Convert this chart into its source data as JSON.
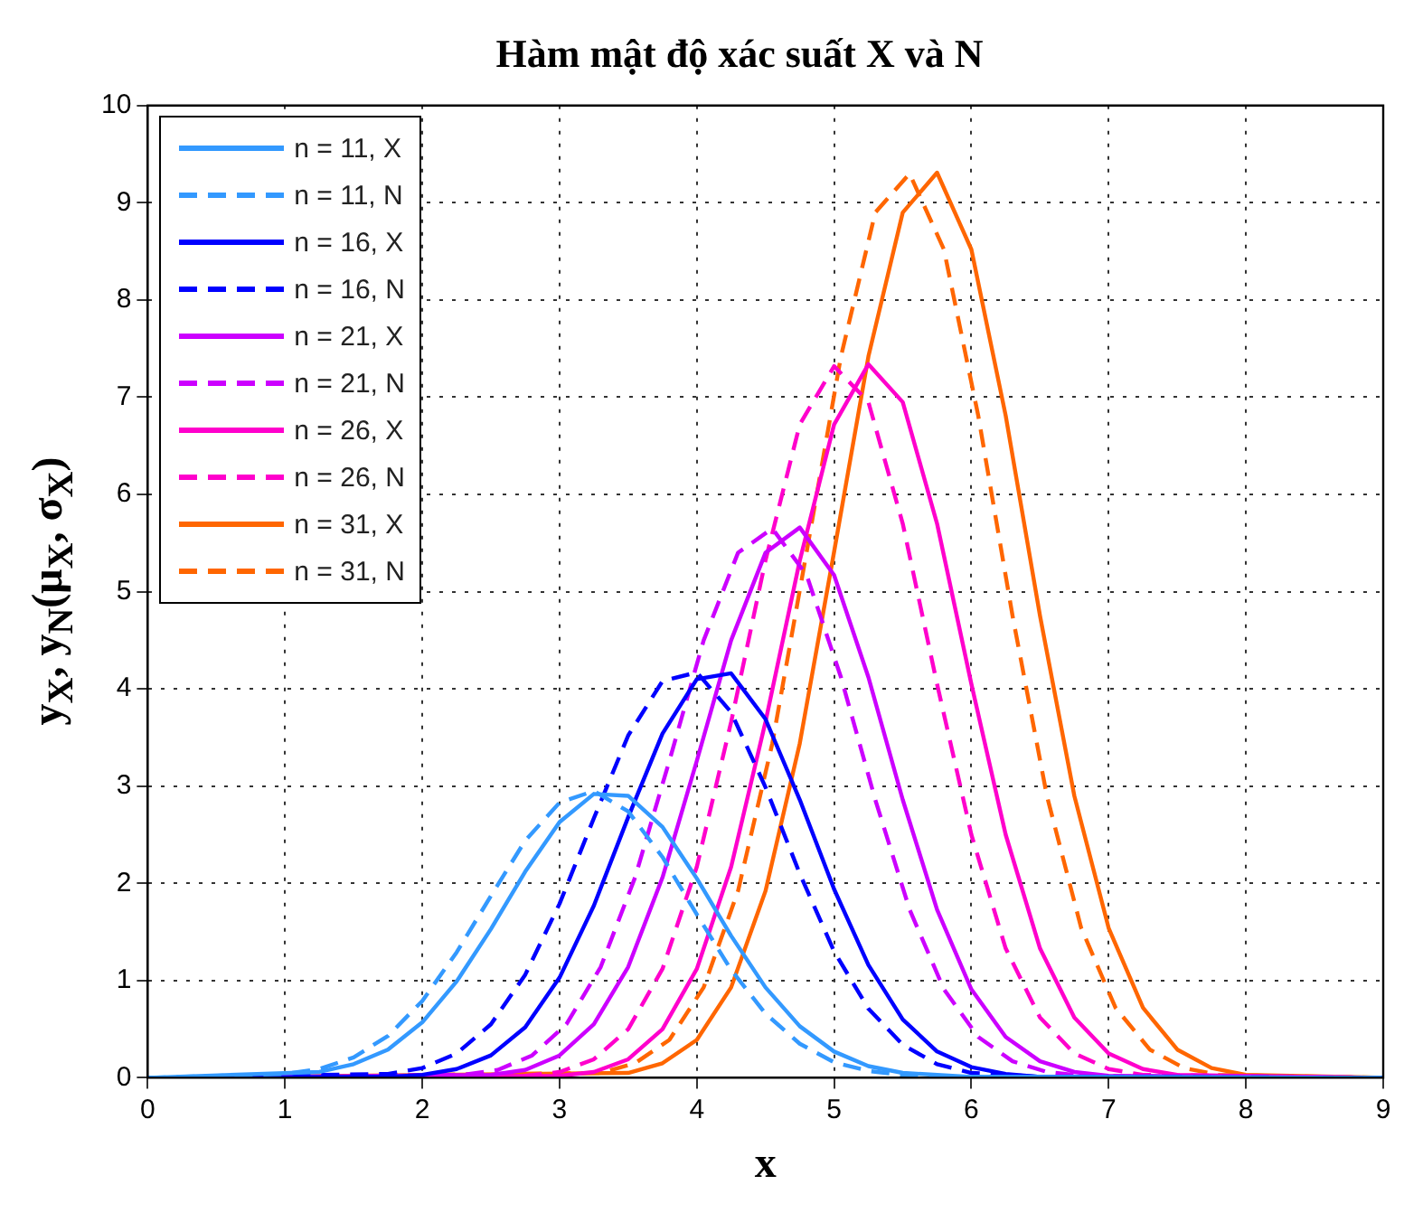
{
  "chart_data": {
    "type": "line",
    "title": "Hàm mật độ xác suất X và N",
    "xlabel": "x",
    "ylabel": "y$_{X}$, y$_{N}$(μ$_{X}$, σ$_{X}$)",
    "xlim": [
      0,
      9
    ],
    "xticks": [
      0,
      1,
      2,
      3,
      4,
      5,
      6,
      7,
      8,
      9
    ],
    "ylim": [
      0,
      10
    ],
    "yticks": [
      0,
      1,
      2,
      3,
      4,
      5,
      6,
      7,
      8,
      9,
      10
    ],
    "grid": true,
    "legend": "top left",
    "marker": "none",
    "series": [
      {
        "name": "n = 11, X",
        "color": "#3399ff",
        "line_style": "solid",
        "x": [
          0,
          1.25,
          1.5,
          1.75,
          2,
          2.25,
          2.5,
          2.75,
          3,
          3.25,
          3.5,
          3.75,
          4,
          4.25,
          4.5,
          4.75,
          5,
          5.25,
          5.5,
          6,
          9
        ],
        "values": [
          0,
          0.06,
          0.14,
          0.29,
          0.57,
          0.99,
          1.53,
          2.12,
          2.63,
          2.92,
          2.9,
          2.58,
          2.05,
          1.46,
          0.93,
          0.53,
          0.27,
          0.12,
          0.05,
          0.01,
          0
        ]
      },
      {
        "name": "n = 11, N",
        "color": "#3399ff",
        "line_style": "dashed",
        "x": [
          0,
          1,
          1.25,
          1.5,
          1.75,
          2,
          2.25,
          2.5,
          2.75,
          3,
          3.25,
          3.5,
          3.75,
          4,
          4.25,
          4.5,
          4.75,
          5,
          5.25,
          5.5,
          6,
          9
        ],
        "values": [
          0,
          0.04,
          0.09,
          0.21,
          0.43,
          0.79,
          1.29,
          1.87,
          2.44,
          2.83,
          2.95,
          2.74,
          2.27,
          1.68,
          1.11,
          0.66,
          0.35,
          0.16,
          0.07,
          0.03,
          0,
          0
        ]
      },
      {
        "name": "n = 16, X",
        "color": "#0000ff",
        "line_style": "solid",
        "x": [
          0,
          1.75,
          2,
          2.25,
          2.5,
          2.75,
          3,
          3.25,
          3.5,
          3.75,
          4,
          4.25,
          4.5,
          4.75,
          5,
          5.25,
          5.5,
          5.75,
          6,
          6.25,
          6.5,
          9
        ],
        "values": [
          0,
          0.01,
          0.03,
          0.09,
          0.23,
          0.52,
          1.03,
          1.77,
          2.68,
          3.54,
          4.1,
          4.16,
          3.69,
          2.86,
          1.94,
          1.16,
          0.6,
          0.27,
          0.11,
          0.04,
          0.01,
          0
        ]
      },
      {
        "name": "n = 16, N",
        "color": "#0000ff",
        "line_style": "dashed",
        "x": [
          0,
          1.75,
          2,
          2.25,
          2.5,
          2.75,
          3,
          3.25,
          3.5,
          3.75,
          4,
          4.25,
          4.5,
          4.75,
          5,
          5.25,
          5.5,
          5.75,
          6,
          6.5,
          9
        ],
        "values": [
          0,
          0.04,
          0.1,
          0.25,
          0.55,
          1.06,
          1.79,
          2.67,
          3.52,
          4.08,
          4.17,
          3.76,
          2.99,
          2.1,
          1.3,
          0.71,
          0.34,
          0.14,
          0.05,
          0.01,
          0
        ]
      },
      {
        "name": "n = 21, X",
        "color": "#cc00ff",
        "line_style": "solid",
        "x": [
          0,
          2.5,
          2.75,
          3,
          3.25,
          3.5,
          3.75,
          4,
          4.25,
          4.5,
          4.75,
          5,
          5.25,
          5.5,
          5.75,
          6,
          6.25,
          6.5,
          6.75,
          7,
          9
        ],
        "values": [
          0,
          0.03,
          0.08,
          0.23,
          0.55,
          1.14,
          2.06,
          3.26,
          4.5,
          5.4,
          5.66,
          5.17,
          4.12,
          2.86,
          1.73,
          0.91,
          0.42,
          0.17,
          0.06,
          0.02,
          0
        ]
      },
      {
        "name": "n = 21, N",
        "color": "#cc00ff",
        "line_style": "dashed",
        "x": [
          0,
          2.3,
          2.55,
          2.8,
          3.05,
          3.3,
          3.55,
          3.8,
          4.05,
          4.3,
          4.55,
          4.8,
          5.05,
          5.3,
          5.55,
          5.8,
          6.05,
          6.3,
          6.55,
          6.8,
          9
        ],
        "values": [
          0,
          0.03,
          0.08,
          0.23,
          0.55,
          1.14,
          2.06,
          3.26,
          4.5,
          5.4,
          5.65,
          5.17,
          4.12,
          2.86,
          1.73,
          0.91,
          0.42,
          0.17,
          0.06,
          0.02,
          0
        ]
      },
      {
        "name": "n = 26, X",
        "color": "#ff00cc",
        "line_style": "solid",
        "x": [
          0,
          3,
          3.25,
          3.5,
          3.75,
          4,
          4.25,
          4.5,
          4.75,
          5,
          5.25,
          5.5,
          5.75,
          6,
          6.25,
          6.5,
          6.75,
          7,
          7.25,
          7.5,
          9
        ],
        "values": [
          0,
          0.02,
          0.06,
          0.19,
          0.5,
          1.12,
          2.17,
          3.66,
          5.32,
          6.72,
          7.34,
          6.95,
          5.7,
          4.05,
          2.5,
          1.33,
          0.62,
          0.25,
          0.09,
          0.03,
          0
        ]
      },
      {
        "name": "n = 26, N",
        "color": "#ff00cc",
        "line_style": "dashed",
        "x": [
          0,
          2.75,
          3,
          3.25,
          3.5,
          3.75,
          4,
          4.25,
          4.5,
          4.75,
          5,
          5.25,
          5.5,
          5.75,
          6,
          6.25,
          6.5,
          6.75,
          7,
          7.25,
          9
        ],
        "values": [
          0,
          0.02,
          0.06,
          0.19,
          0.5,
          1.12,
          2.17,
          3.66,
          5.32,
          6.72,
          7.32,
          6.95,
          5.7,
          4.05,
          2.5,
          1.33,
          0.62,
          0.25,
          0.09,
          0.03,
          0
        ]
      },
      {
        "name": "n = 31, X",
        "color": "#ff6600",
        "line_style": "solid",
        "x": [
          0,
          3.5,
          3.75,
          4,
          4.25,
          4.5,
          4.75,
          5,
          5.25,
          5.5,
          5.75,
          6,
          6.25,
          6.5,
          6.75,
          7,
          7.25,
          7.5,
          7.75,
          8,
          9
        ],
        "values": [
          0,
          0.05,
          0.15,
          0.39,
          0.93,
          1.92,
          3.44,
          5.41,
          7.42,
          8.9,
          9.31,
          8.52,
          6.81,
          4.75,
          2.9,
          1.54,
          0.72,
          0.29,
          0.1,
          0.03,
          0
        ]
      },
      {
        "name": "n = 31, N",
        "color": "#ff6600",
        "line_style": "dashed",
        "x": [
          0,
          3.3,
          3.55,
          3.8,
          4.05,
          4.3,
          4.55,
          4.8,
          5.05,
          5.3,
          5.55,
          5.8,
          6.05,
          6.3,
          6.55,
          6.8,
          7.05,
          7.3,
          7.55,
          7.8,
          9
        ],
        "values": [
          0,
          0.05,
          0.15,
          0.39,
          0.93,
          1.92,
          3.44,
          5.41,
          7.42,
          8.9,
          9.3,
          8.52,
          6.81,
          4.75,
          2.9,
          1.54,
          0.72,
          0.29,
          0.1,
          0.03,
          0
        ]
      }
    ]
  }
}
